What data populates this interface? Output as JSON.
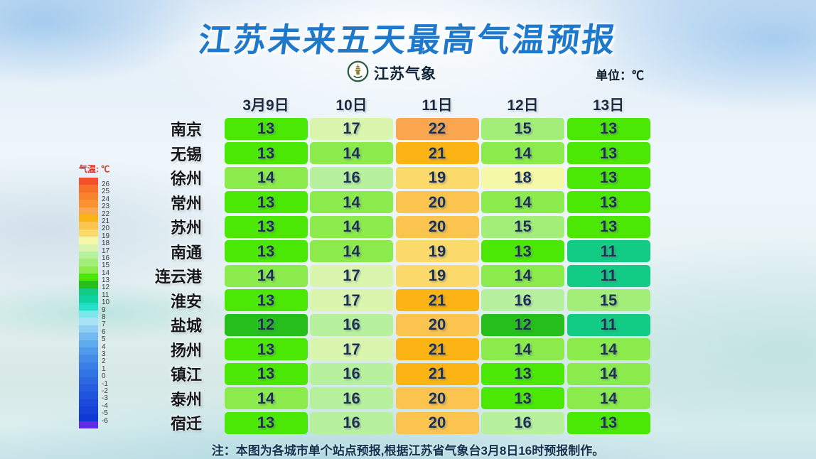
{
  "header": {
    "title": "江苏未来五天最高气温预报",
    "brand": "江苏气象",
    "unit_label": "单位：℃"
  },
  "legend": {
    "title": "气温: ℃",
    "swatches": [
      {
        "color": "#F4502B",
        "label": "26"
      },
      {
        "color": "#F8702C",
        "label": "25"
      },
      {
        "color": "#F9822D",
        "label": "24"
      },
      {
        "color": "#FA9330",
        "label": "23"
      },
      {
        "color": "#F9A64E",
        "label": "22"
      },
      {
        "color": "#FCB314",
        "label": "21"
      },
      {
        "color": "#FBC44E",
        "label": "20"
      },
      {
        "color": "#FBD96A",
        "label": "19"
      },
      {
        "color": "#F5F8A7",
        "label": "18"
      },
      {
        "color": "#DAF5AE",
        "label": "17"
      },
      {
        "color": "#B8F19E",
        "label": "16"
      },
      {
        "color": "#A3EE78",
        "label": "15"
      },
      {
        "color": "#8BEB4C",
        "label": "14"
      },
      {
        "color": "#4BE705",
        "label": "13"
      },
      {
        "color": "#25BE1B",
        "label": "12"
      },
      {
        "color": "#12CB85",
        "label": "11"
      },
      {
        "color": "#0FD2A0",
        "label": "10"
      },
      {
        "color": "#27DECB",
        "label": "9"
      },
      {
        "color": "#7BE8EA",
        "label": "8"
      },
      {
        "color": "#A9E2F6",
        "label": "7"
      },
      {
        "color": "#90CFF3",
        "label": "6"
      },
      {
        "color": "#74BAF0",
        "label": "5"
      },
      {
        "color": "#5FA9ED",
        "label": "4"
      },
      {
        "color": "#509AEB",
        "label": "3"
      },
      {
        "color": "#448CE8",
        "label": "2"
      },
      {
        "color": "#3B80E6",
        "label": "1"
      },
      {
        "color": "#3374E4",
        "label": "0"
      },
      {
        "color": "#2C69E1",
        "label": "-1"
      },
      {
        "color": "#265EDF",
        "label": "-2"
      },
      {
        "color": "#2054DD",
        "label": "-3"
      },
      {
        "color": "#1B4BDB",
        "label": "-4"
      },
      {
        "color": "#1642D9",
        "label": "-5"
      },
      {
        "color": "#1038D7",
        "label": "-6"
      },
      {
        "color": "#5F2CE3",
        "label": ""
      }
    ]
  },
  "chart_data": {
    "type": "heatmap",
    "title": "江苏未来五天最高气温预报",
    "unit": "℃",
    "colorbar_label": "气温: ℃",
    "colorbar_range": [
      -6,
      26
    ],
    "columns": [
      "3月9日",
      "10日",
      "11日",
      "12日",
      "13日"
    ],
    "rows": [
      {
        "city": "南京",
        "temps": [
          13,
          17,
          22,
          15,
          13
        ]
      },
      {
        "city": "无锡",
        "temps": [
          13,
          14,
          21,
          14,
          13
        ]
      },
      {
        "city": "徐州",
        "temps": [
          14,
          16,
          19,
          18,
          13
        ]
      },
      {
        "city": "常州",
        "temps": [
          13,
          14,
          20,
          14,
          13
        ]
      },
      {
        "city": "苏州",
        "temps": [
          13,
          14,
          20,
          15,
          13
        ]
      },
      {
        "city": "南通",
        "temps": [
          13,
          14,
          19,
          13,
          11
        ]
      },
      {
        "city": "连云港",
        "temps": [
          14,
          17,
          19,
          14,
          11
        ]
      },
      {
        "city": "淮安",
        "temps": [
          13,
          17,
          21,
          16,
          15
        ]
      },
      {
        "city": "盐城",
        "temps": [
          12,
          16,
          20,
          12,
          11
        ]
      },
      {
        "city": "扬州",
        "temps": [
          13,
          17,
          21,
          14,
          14
        ]
      },
      {
        "city": "镇江",
        "temps": [
          13,
          16,
          21,
          13,
          14
        ]
      },
      {
        "city": "泰州",
        "temps": [
          14,
          16,
          20,
          13,
          14
        ]
      },
      {
        "city": "宿迁",
        "temps": [
          13,
          16,
          20,
          16,
          13
        ]
      }
    ],
    "value_colors": {
      "11": "#12CB85",
      "12": "#25BE1B",
      "13": "#4BE705",
      "14": "#8BEB4C",
      "15": "#A3EE78",
      "16": "#B8F19E",
      "17": "#DAF5AE",
      "18": "#F5F8A7",
      "19": "#FBD96A",
      "20": "#FBC44E",
      "21": "#FCB314",
      "22": "#F9A64E"
    }
  },
  "note": "注：本图为各城市单个站点预报,根据江苏省气象台3月8日16时预报制作。"
}
